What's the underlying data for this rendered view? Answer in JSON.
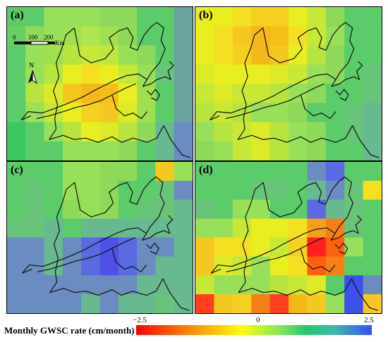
{
  "panels": [
    {
      "label": "(a)",
      "cells": [
        "#5ccc6a",
        "#5ccc6a",
        "#98e05a",
        "#98e05a",
        "#98e05a",
        "#8ed85a",
        "#8ed85a",
        "#5ccc6a",
        "#5ccc6a",
        "#6aa4a0",
        "#68d062",
        "#8ed85a",
        "#98e05a",
        "#a0e050",
        "#b0e450",
        "#a0e050",
        "#8ed85a",
        "#5ccc6a",
        "#5ccc6a",
        "#6aa4a0",
        "#5ccc6a",
        "#98e05a",
        "#a0e050",
        "#b8e440",
        "#c8e838",
        "#c0e640",
        "#98e05a",
        "#8ed85a",
        "#5ccc6a",
        "#6aa4a0",
        "#5ccc6a",
        "#98e05a",
        "#b8e440",
        "#e8ee20",
        "#f4e020",
        "#e8ee20",
        "#c8e838",
        "#98e05a",
        "#68c478",
        "#6aa4a0",
        "#5ccc6a",
        "#b8e440",
        "#dcea28",
        "#f4c820",
        "#f4b818",
        "#f4c018",
        "#e8ee20",
        "#a0e050",
        "#5ccc6a",
        "#6aa4a0",
        "#5ccc6a",
        "#98e05a",
        "#c8e838",
        "#e8ee20",
        "#f4d020",
        "#f4c820",
        "#dcea28",
        "#a0e050",
        "#5ccc6a",
        "#6aa4a0",
        "#3cc860",
        "#5ccc6a",
        "#98e05a",
        "#b8e440",
        "#e8ee20",
        "#dcea28",
        "#b8e440",
        "#8ed85a",
        "#68b890",
        "#6a8cc0",
        "#3cc860",
        "#5ccc6a",
        "#5ccc6a",
        "#98e05a",
        "#98e05a",
        "#98e05a",
        "#8ed85a",
        "#5ccc6a",
        "#68b890",
        "#6a8cc0"
      ]
    },
    {
      "label": "(b)",
      "cells": [
        "#e8ee20",
        "#e8ee20",
        "#f4e020",
        "#f4d020",
        "#f4d020",
        "#e8ee20",
        "#c8e838",
        "#8ed85a",
        "#5ccc6a",
        "#5ccc6a",
        "#e8ee20",
        "#f4e020",
        "#f4c820",
        "#f4b818",
        "#f4c018",
        "#f4e020",
        "#c8e838",
        "#98e05a",
        "#5ccc6a",
        "#5ccc6a",
        "#e8ee20",
        "#f4e020",
        "#f4d020",
        "#f4b818",
        "#f4c820",
        "#e8ee20",
        "#b8e440",
        "#8ed85a",
        "#5ccc6a",
        "#5ccc6a",
        "#dcea28",
        "#e8ee20",
        "#e8ee20",
        "#e8ee20",
        "#dcea28",
        "#c8e838",
        "#98e05a",
        "#8ed85a",
        "#5ccc6a",
        "#68c478",
        "#c8e838",
        "#dcea28",
        "#c8e838",
        "#c8e838",
        "#b8e440",
        "#98e05a",
        "#8ed85a",
        "#5ccc6a",
        "#5ccc6a",
        "#68c478",
        "#b8e440",
        "#c8e838",
        "#b8e440",
        "#98e05a",
        "#98e05a",
        "#8ed85a",
        "#5ccc6a",
        "#5ccc6a",
        "#68c478",
        "#68b890",
        "#98e05a",
        "#b8e440",
        "#c8e838",
        "#dcea28",
        "#b8e440",
        "#98e05a",
        "#8ed85a",
        "#5ccc6a",
        "#68c478",
        "#68b890",
        "#8ed85a",
        "#98e05a",
        "#c8e838",
        "#dcea28",
        "#b8e440",
        "#98e05a",
        "#8ed85a",
        "#5ccc6a",
        "#5ccc6a",
        "#68b890"
      ]
    },
    {
      "label": "(c)",
      "cells": [
        "#5ccc6a",
        "#5ccc6a",
        "#5ccc6a",
        "#98e05a",
        "#98e05a",
        "#8ed85a",
        "#8ed85a",
        "#5ccc6a",
        "#f4c820",
        "#98e05a",
        "#5ccc6a",
        "#68c478",
        "#5ccc6a",
        "#98e05a",
        "#98e05a",
        "#8ed85a",
        "#5ccc6a",
        "#5ccc6a",
        "#68c478",
        "#6a8cc0",
        "#5ccc6a",
        "#68c478",
        "#5ccc6a",
        "#8ed85a",
        "#98e05a",
        "#8ed85a",
        "#5ccc6a",
        "#68c478",
        "#68c478",
        "#68b890",
        "#68c478",
        "#68c478",
        "#68b890",
        "#5ccc6a",
        "#68b890",
        "#68b890",
        "#68b890",
        "#68b890",
        "#68b890",
        "#68b890",
        "#6a8cc0",
        "#6a8cc0",
        "#68b890",
        "#6a8cc0",
        "#5a6ae0",
        "#4e50e8",
        "#5a6ae0",
        "#6a8cc0",
        "#6a8cc0",
        "#68b890",
        "#6a8cc0",
        "#6a8cc0",
        "#68b890",
        "#6a8cc0",
        "#5a6ae0",
        "#4e50e8",
        "#5a6ae0",
        "#6a8cc0",
        "#68b890",
        "#68b890",
        "#6a8cc0",
        "#6a8cc0",
        "#6a8cc0",
        "#6a8cc0",
        "#6a8cc0",
        "#6a8cc0",
        "#6a8cc0",
        "#68b890",
        "#68b890",
        "#68b890",
        "#6a8cc0",
        "#6a8cc0",
        "#6a8cc0",
        "#6a8cc0",
        "#68b890",
        "#6a8cc0",
        "#68b890",
        "#68b890",
        "#68c478",
        "#68b890"
      ]
    },
    {
      "label": "(d)",
      "cells": [
        "#5ccc6a",
        "#5ccc6a",
        "#5ccc6a",
        "#5ccc6a",
        "#5ccc6a",
        "#5ccc6a",
        "#6a8cc0",
        "#5a6ae0",
        "#5ccc6a",
        "#5ccc6a",
        "#5ccc6a",
        "#5ccc6a",
        "#5ccc6a",
        "#68c478",
        "#68c478",
        "#5ccc6a",
        "#68b890",
        "#6a8cc0",
        "#68c478",
        "#f4e020",
        "#68c478",
        "#5ccc6a",
        "#98e05a",
        "#98e05a",
        "#5ccc6a",
        "#5ccc6a",
        "#5a6ae0",
        "#68b890",
        "#68c478",
        "#5ccc6a",
        "#98e05a",
        "#98e05a",
        "#c8e838",
        "#e8ee20",
        "#e8ee20",
        "#f4e020",
        "#f4a018",
        "#f48018",
        "#68c478",
        "#5ccc6a",
        "#f4c820",
        "#f4e020",
        "#f4e020",
        "#e8ee20",
        "#c8e838",
        "#f4d020",
        "#ff2020",
        "#ff6010",
        "#98e05a",
        "#5ccc6a",
        "#f4c820",
        "#dcea28",
        "#c8e838",
        "#98e05a",
        "#e8ee20",
        "#f4e020",
        "#ff6010",
        "#f48018",
        "#5ccc6a",
        "#5ccc6a",
        "#c8e838",
        "#98e05a",
        "#98e05a",
        "#98e05a",
        "#b8e440",
        "#c8e838",
        "#dcea28",
        "#5ccc6a",
        "#3c50ec",
        "#6a8cc0",
        "#ff4020",
        "#f4c820",
        "#f4d020",
        "#f48018",
        "#ff4020",
        "#f4b818",
        "#f4c820",
        "#98e05a",
        "#3c50ec",
        "#f4c820"
      ]
    }
  ],
  "scalebar": {
    "ticks": [
      "0",
      "100",
      "200"
    ],
    "unit": "Km"
  },
  "north": {
    "label": "N"
  },
  "legend": {
    "title": "Monthly GWSC rate (cm/month)",
    "min_label": "−2.5",
    "mid_label": "0",
    "max_label": "2.5"
  }
}
